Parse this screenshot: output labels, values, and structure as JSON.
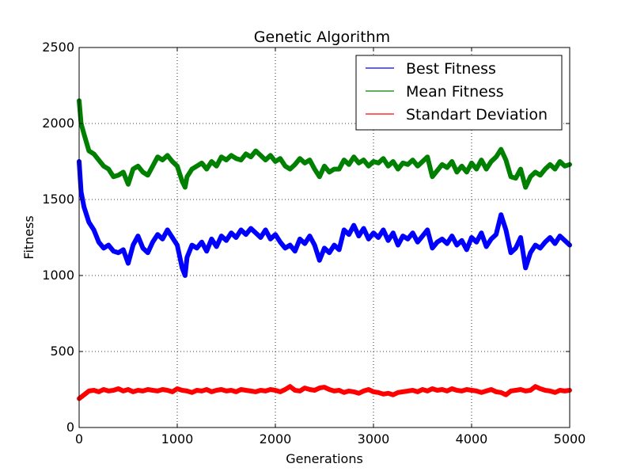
{
  "chart_data": {
    "type": "line",
    "title": "Genetic Algorithm",
    "xlabel": "Generations",
    "ylabel": "Fitness",
    "xlim": [
      0,
      5000
    ],
    "ylim": [
      0,
      2500
    ],
    "xticks": [
      0,
      1000,
      2000,
      3000,
      4000,
      5000
    ],
    "yticks": [
      0,
      500,
      1000,
      1500,
      2000,
      2500
    ],
    "grid": true,
    "legend_position": "top-right",
    "series": [
      {
        "name": "Best Fitness",
        "color": "#0000ff",
        "x": [
          0,
          20,
          50,
          100,
          150,
          200,
          250,
          300,
          350,
          400,
          450,
          500,
          550,
          600,
          650,
          700,
          750,
          800,
          850,
          900,
          950,
          1000,
          1050,
          1080,
          1100,
          1150,
          1200,
          1250,
          1300,
          1350,
          1400,
          1450,
          1500,
          1550,
          1600,
          1650,
          1700,
          1750,
          1800,
          1850,
          1900,
          1950,
          2000,
          2050,
          2100,
          2150,
          2200,
          2250,
          2300,
          2350,
          2400,
          2450,
          2500,
          2550,
          2600,
          2650,
          2700,
          2750,
          2800,
          2850,
          2900,
          2950,
          3000,
          3050,
          3100,
          3150,
          3200,
          3250,
          3300,
          3350,
          3400,
          3450,
          3500,
          3550,
          3600,
          3650,
          3700,
          3750,
          3800,
          3850,
          3900,
          3950,
          4000,
          4050,
          4100,
          4150,
          4200,
          4250,
          4300,
          4350,
          4400,
          4450,
          4500,
          4550,
          4600,
          4650,
          4700,
          4750,
          4800,
          4850,
          4900,
          4950,
          5000
        ],
        "values": [
          1750,
          1550,
          1450,
          1350,
          1300,
          1220,
          1180,
          1200,
          1160,
          1150,
          1170,
          1080,
          1200,
          1260,
          1180,
          1150,
          1220,
          1270,
          1240,
          1300,
          1250,
          1200,
          1050,
          1000,
          1120,
          1200,
          1180,
          1220,
          1160,
          1240,
          1190,
          1260,
          1230,
          1280,
          1250,
          1300,
          1270,
          1310,
          1280,
          1250,
          1300,
          1240,
          1270,
          1220,
          1180,
          1200,
          1160,
          1240,
          1210,
          1260,
          1200,
          1100,
          1180,
          1150,
          1200,
          1170,
          1300,
          1270,
          1330,
          1260,
          1310,
          1240,
          1280,
          1250,
          1300,
          1230,
          1280,
          1200,
          1260,
          1240,
          1280,
          1220,
          1260,
          1300,
          1180,
          1220,
          1240,
          1210,
          1260,
          1200,
          1230,
          1170,
          1250,
          1220,
          1280,
          1190,
          1240,
          1270,
          1400,
          1300,
          1150,
          1180,
          1250,
          1050,
          1150,
          1200,
          1180,
          1220,
          1250,
          1210,
          1260,
          1230,
          1200
        ]
      },
      {
        "name": "Mean Fitness",
        "color": "#008000",
        "x": [
          0,
          20,
          50,
          100,
          150,
          200,
          250,
          300,
          350,
          400,
          450,
          500,
          550,
          600,
          650,
          700,
          750,
          800,
          850,
          900,
          950,
          1000,
          1050,
          1080,
          1100,
          1150,
          1200,
          1250,
          1300,
          1350,
          1400,
          1450,
          1500,
          1550,
          1600,
          1650,
          1700,
          1750,
          1800,
          1850,
          1900,
          1950,
          2000,
          2050,
          2100,
          2150,
          2200,
          2250,
          2300,
          2350,
          2400,
          2450,
          2500,
          2550,
          2600,
          2650,
          2700,
          2750,
          2800,
          2850,
          2900,
          2950,
          3000,
          3050,
          3100,
          3150,
          3200,
          3250,
          3300,
          3350,
          3400,
          3450,
          3500,
          3550,
          3600,
          3650,
          3700,
          3750,
          3800,
          3850,
          3900,
          3950,
          4000,
          4050,
          4100,
          4150,
          4200,
          4250,
          4300,
          4350,
          4400,
          4450,
          4500,
          4550,
          4600,
          4650,
          4700,
          4750,
          4800,
          4850,
          4900,
          4950,
          5000
        ],
        "values": [
          2150,
          2000,
          1930,
          1820,
          1800,
          1760,
          1720,
          1700,
          1650,
          1660,
          1680,
          1600,
          1700,
          1720,
          1680,
          1660,
          1720,
          1780,
          1760,
          1790,
          1750,
          1720,
          1620,
          1580,
          1650,
          1700,
          1720,
          1740,
          1700,
          1750,
          1720,
          1780,
          1760,
          1790,
          1770,
          1760,
          1800,
          1780,
          1820,
          1790,
          1760,
          1790,
          1750,
          1770,
          1720,
          1700,
          1730,
          1770,
          1740,
          1760,
          1700,
          1650,
          1720,
          1680,
          1700,
          1700,
          1760,
          1730,
          1780,
          1740,
          1760,
          1720,
          1750,
          1740,
          1770,
          1720,
          1750,
          1700,
          1740,
          1730,
          1760,
          1720,
          1750,
          1780,
          1650,
          1690,
          1730,
          1710,
          1750,
          1680,
          1720,
          1680,
          1740,
          1700,
          1760,
          1700,
          1750,
          1780,
          1830,
          1760,
          1650,
          1640,
          1700,
          1580,
          1650,
          1680,
          1660,
          1700,
          1730,
          1700,
          1750,
          1720,
          1730
        ]
      },
      {
        "name": "Standart Deviation",
        "color": "#ff0000",
        "x": [
          0,
          50,
          100,
          150,
          200,
          250,
          300,
          350,
          400,
          450,
          500,
          550,
          600,
          650,
          700,
          750,
          800,
          850,
          900,
          950,
          1000,
          1050,
          1100,
          1150,
          1200,
          1250,
          1300,
          1350,
          1400,
          1450,
          1500,
          1550,
          1600,
          1650,
          1700,
          1750,
          1800,
          1850,
          1900,
          1950,
          2000,
          2050,
          2100,
          2150,
          2200,
          2250,
          2300,
          2350,
          2400,
          2450,
          2500,
          2550,
          2600,
          2650,
          2700,
          2750,
          2800,
          2850,
          2900,
          2950,
          3000,
          3050,
          3100,
          3150,
          3200,
          3250,
          3300,
          3350,
          3400,
          3450,
          3500,
          3550,
          3600,
          3650,
          3700,
          3750,
          3800,
          3850,
          3900,
          3950,
          4000,
          4050,
          4100,
          4150,
          4200,
          4250,
          4300,
          4350,
          4400,
          4450,
          4500,
          4550,
          4600,
          4650,
          4700,
          4750,
          4800,
          4850,
          4900,
          4950,
          5000
        ],
        "values": [
          190,
          215,
          240,
          245,
          235,
          250,
          240,
          245,
          255,
          240,
          250,
          235,
          245,
          240,
          250,
          245,
          240,
          250,
          245,
          235,
          255,
          245,
          240,
          230,
          245,
          240,
          250,
          235,
          245,
          250,
          240,
          245,
          235,
          250,
          245,
          240,
          235,
          245,
          240,
          250,
          245,
          235,
          250,
          270,
          245,
          240,
          260,
          250,
          245,
          260,
          265,
          250,
          240,
          245,
          230,
          240,
          235,
          225,
          240,
          250,
          235,
          230,
          220,
          225,
          215,
          230,
          235,
          240,
          245,
          235,
          250,
          240,
          255,
          245,
          250,
          240,
          255,
          245,
          240,
          250,
          245,
          240,
          230,
          240,
          250,
          235,
          230,
          215,
          240,
          245,
          250,
          240,
          245,
          270,
          255,
          245,
          240,
          230,
          245,
          240,
          245
        ]
      }
    ]
  }
}
